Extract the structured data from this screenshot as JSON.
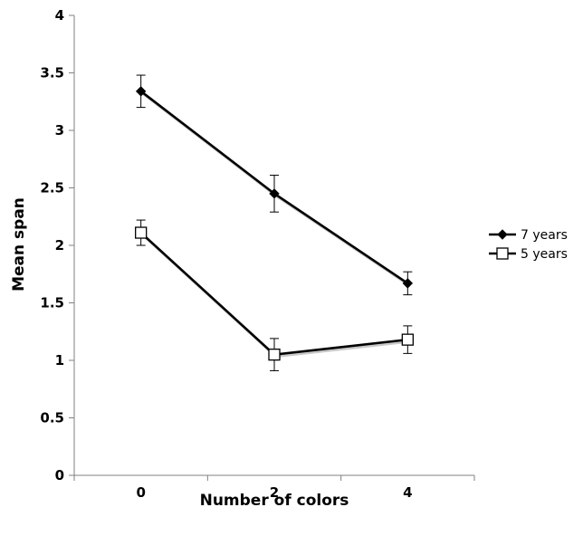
{
  "chart_data": {
    "type": "line",
    "title": "",
    "xlabel": "Number of colors",
    "ylabel": "Mean span",
    "x": [
      0,
      2,
      4
    ],
    "x_tick_labels": [
      "0",
      "2",
      "4"
    ],
    "y_tick_labels": [
      "0",
      "0.5",
      "1",
      "1.5",
      "2",
      "2.5",
      "3",
      "3.5",
      "4"
    ],
    "ylim": [
      0,
      4
    ],
    "grid": false,
    "legend_position": "right",
    "series": [
      {
        "name": "7 years",
        "marker": "filled-diamond",
        "color": "#000000",
        "values": [
          3.34,
          2.45,
          1.67
        ],
        "error": [
          0.14,
          0.16,
          0.1
        ]
      },
      {
        "name": "5 years",
        "marker": "open-square",
        "color": "#000000",
        "values": [
          2.11,
          1.05,
          1.18
        ],
        "error": [
          0.11,
          0.14,
          0.12
        ]
      }
    ]
  }
}
